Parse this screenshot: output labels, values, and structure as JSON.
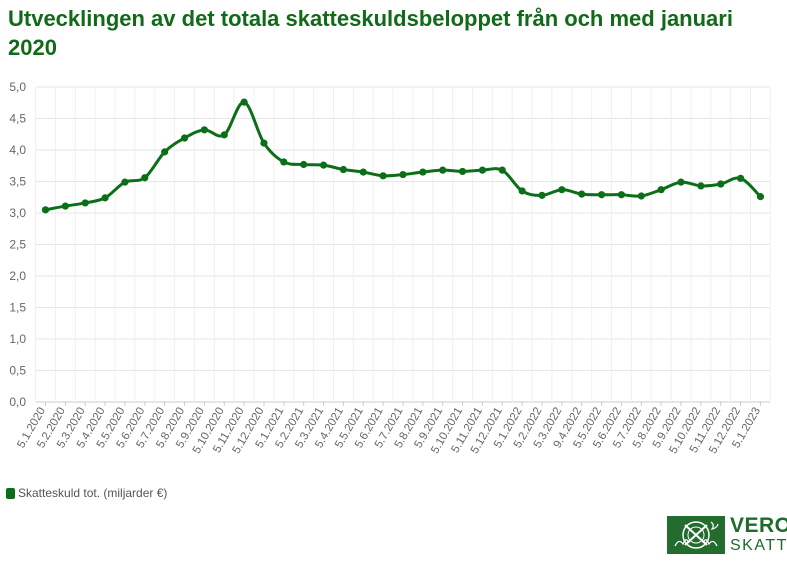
{
  "title": "Utvecklingen av det totala skatteskuldsbeloppet från och med januari 2020",
  "legend_label": "Skatteskuld tot. (miljarder €)",
  "logo": {
    "line1": "VERO",
    "line2": "SKATT"
  },
  "colors": {
    "line": "#0b6f18",
    "title": "#106a18",
    "grid": "#e6e6e6",
    "axis_text": "#666666"
  },
  "chart_data": {
    "type": "line",
    "title": "Utvecklingen av det totala skatteskuldsbeloppet från och med januari 2020",
    "xlabel": "",
    "ylabel": "",
    "ylim": [
      0,
      5
    ],
    "yticks": [
      "0,0",
      "0,5",
      "1,0",
      "1,5",
      "2,0",
      "2,5",
      "3,0",
      "3,5",
      "4,0",
      "4,5",
      "5,0"
    ],
    "grid": true,
    "legend": "bottom-left",
    "categories": [
      "5.1.2020",
      "5.2.2020",
      "5.3.2020",
      "5.4.2020",
      "5.5.2020",
      "5.6.2020",
      "5.7.2020",
      "5.8.2020",
      "5.9.2020",
      "5.10.2020",
      "5.11.2020",
      "5.12.2020",
      "5.1.2021",
      "5.2.2021",
      "5.3.2021",
      "5.4.2021",
      "5.5.2021",
      "5.6.2021",
      "5.7.2021",
      "5.8.2021",
      "5.9.2021",
      "5.10.2021",
      "5.11.2021",
      "5.12.2021",
      "5.1.2022",
      "5.2.2022",
      "5.3.2022",
      "9.4.2022",
      "5.5.2022",
      "5.6.2022",
      "5.7.2022",
      "5.8.2022",
      "5.9.2022",
      "5.10.2022",
      "5.11.2022",
      "5.12.2022",
      "5.1.2023"
    ],
    "series": [
      {
        "name": "Skatteskuld tot. (miljarder €)",
        "values": [
          3.05,
          3.11,
          3.16,
          3.24,
          3.49,
          3.56,
          3.97,
          4.19,
          4.32,
          4.24,
          4.76,
          4.11,
          3.81,
          3.77,
          3.76,
          3.69,
          3.65,
          3.59,
          3.61,
          3.65,
          3.68,
          3.66,
          3.68,
          3.68,
          3.35,
          3.28,
          3.37,
          3.3,
          3.29,
          3.29,
          3.27,
          3.37,
          3.49,
          3.43,
          3.46,
          3.55,
          3.26
        ]
      }
    ]
  }
}
